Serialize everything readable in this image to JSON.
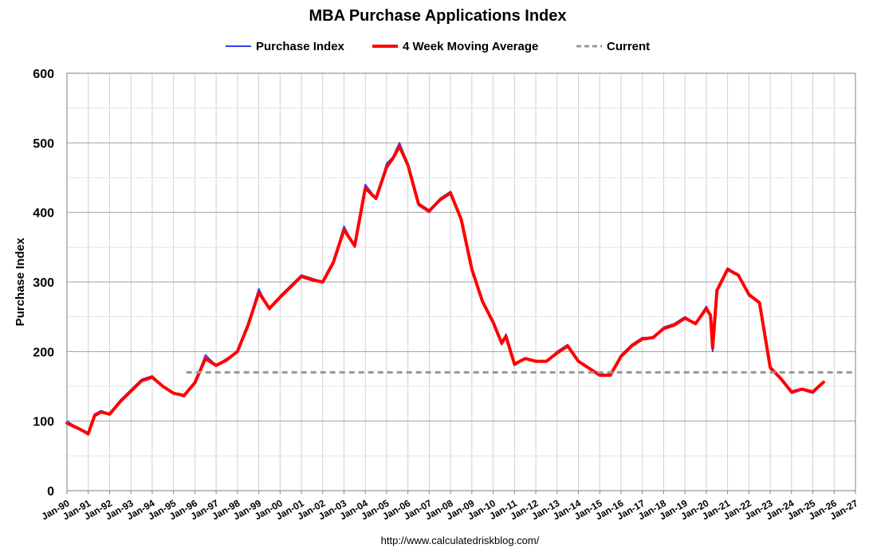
{
  "chart_data": {
    "type": "line",
    "title": "MBA Purchase Applications Index",
    "ylabel": "Purchase Index",
    "xlabel": "",
    "ylim": [
      0,
      600
    ],
    "yticks": [
      0,
      100,
      200,
      300,
      400,
      500,
      600
    ],
    "xlim": [
      1990,
      2027
    ],
    "grid": true,
    "legend_position": "top",
    "x_tick_labels": [
      "Jan-90",
      "Jan-91",
      "Jan-92",
      "Jan-93",
      "Jan-94",
      "Jan-95",
      "Jan-96",
      "Jan-97",
      "Jan-98",
      "Jan-99",
      "Jan-00",
      "Jan-01",
      "Jan-02",
      "Jan-03",
      "Jan-04",
      "Jan-05",
      "Jan-06",
      "Jan-07",
      "Jan-08",
      "Jan-09",
      "Jan-10",
      "Jan-11",
      "Jan-12",
      "Jan-13",
      "Jan-14",
      "Jan-15",
      "Jan-16",
      "Jan-17",
      "Jan-18",
      "Jan-19",
      "Jan-20",
      "Jan-21",
      "Jan-22",
      "Jan-23",
      "Jan-24",
      "Jan-25",
      "Jan-26",
      "Jan-27"
    ],
    "source": "http://www.calculatedriskblog.com/",
    "series": [
      {
        "name": "Purchase Index",
        "color": "#3b3bef",
        "x": [
          1990.0,
          1990.5,
          1991.0,
          1991.3,
          1991.6,
          1992.0,
          1992.5,
          1993.0,
          1993.5,
          1994.0,
          1994.5,
          1995.0,
          1995.5,
          1996.0,
          1996.5,
          1997.0,
          1997.5,
          1998.0,
          1998.5,
          1999.0,
          1999.5,
          2000.0,
          2000.5,
          2001.0,
          2001.5,
          2002.0,
          2002.5,
          2003.0,
          2003.5,
          2004.0,
          2004.5,
          2005.0,
          2005.3,
          2005.6,
          2006.0,
          2006.5,
          2007.0,
          2007.5,
          2008.0,
          2008.5,
          2009.0,
          2009.5,
          2010.0,
          2010.4,
          2010.6,
          2011.0,
          2011.5,
          2012.0,
          2012.5,
          2013.0,
          2013.5,
          2014.0,
          2014.5,
          2015.0,
          2015.5,
          2016.0,
          2016.5,
          2017.0,
          2017.5,
          2018.0,
          2018.5,
          2019.0,
          2019.5,
          2020.0,
          2020.2,
          2020.3,
          2020.5,
          2021.0,
          2021.5,
          2022.0,
          2022.5,
          2023.0,
          2023.5,
          2024.0,
          2024.5,
          2025.0,
          2025.5
        ],
        "values": [
          100,
          90,
          80,
          110,
          115,
          110,
          130,
          145,
          160,
          165,
          150,
          140,
          135,
          155,
          195,
          180,
          190,
          200,
          240,
          290,
          260,
          280,
          295,
          310,
          305,
          300,
          330,
          380,
          350,
          440,
          420,
          470,
          480,
          500,
          470,
          410,
          400,
          420,
          430,
          390,
          320,
          270,
          240,
          210,
          225,
          180,
          190,
          185,
          185,
          200,
          210,
          185,
          175,
          165,
          165,
          195,
          210,
          220,
          220,
          235,
          240,
          250,
          240,
          265,
          250,
          200,
          290,
          320,
          310,
          280,
          270,
          175,
          160,
          140,
          145,
          140,
          155
        ]
      },
      {
        "name": "4 Week Moving Average",
        "color": "#ff0000",
        "x": [
          1990.0,
          1990.5,
          1991.0,
          1991.3,
          1991.6,
          1992.0,
          1992.5,
          1993.0,
          1993.5,
          1994.0,
          1994.5,
          1995.0,
          1995.5,
          1996.0,
          1996.5,
          1997.0,
          1997.5,
          1998.0,
          1998.5,
          1999.0,
          1999.5,
          2000.0,
          2000.5,
          2001.0,
          2001.5,
          2002.0,
          2002.5,
          2003.0,
          2003.5,
          2004.0,
          2004.5,
          2005.0,
          2005.3,
          2005.6,
          2006.0,
          2006.5,
          2007.0,
          2007.5,
          2008.0,
          2008.5,
          2009.0,
          2009.5,
          2010.0,
          2010.4,
          2010.6,
          2011.0,
          2011.5,
          2012.0,
          2012.5,
          2013.0,
          2013.5,
          2014.0,
          2014.5,
          2015.0,
          2015.5,
          2016.0,
          2016.5,
          2017.0,
          2017.5,
          2018.0,
          2018.5,
          2019.0,
          2019.5,
          2020.0,
          2020.2,
          2020.3,
          2020.5,
          2021.0,
          2021.5,
          2022.0,
          2022.5,
          2023.0,
          2023.5,
          2024.0,
          2024.5,
          2025.0,
          2025.5
        ],
        "values": [
          97,
          90,
          82,
          108,
          113,
          110,
          128,
          143,
          158,
          163,
          150,
          140,
          137,
          155,
          190,
          180,
          188,
          200,
          238,
          285,
          262,
          278,
          293,
          308,
          303,
          300,
          328,
          375,
          352,
          435,
          420,
          465,
          478,
          495,
          468,
          412,
          402,
          418,
          428,
          390,
          318,
          272,
          242,
          212,
          222,
          182,
          190,
          186,
          186,
          198,
          208,
          186,
          176,
          166,
          166,
          193,
          208,
          218,
          220,
          233,
          238,
          248,
          240,
          262,
          252,
          205,
          288,
          318,
          310,
          282,
          270,
          177,
          161,
          142,
          146,
          142,
          156
        ]
      }
    ],
    "reference_lines": [
      {
        "name": "Current",
        "y": 170,
        "color": "#999999",
        "dash": "dashed"
      }
    ]
  }
}
